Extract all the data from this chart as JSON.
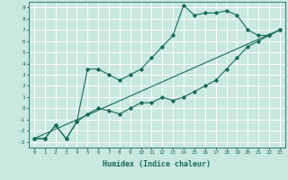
{
  "title": "",
  "xlabel": "Humidex (Indice chaleur)",
  "ylabel": "",
  "xlim": [
    -0.5,
    23.5
  ],
  "ylim": [
    -3.5,
    9.5
  ],
  "xticks": [
    0,
    1,
    2,
    3,
    4,
    5,
    6,
    7,
    8,
    9,
    10,
    11,
    12,
    13,
    14,
    15,
    16,
    17,
    18,
    19,
    20,
    21,
    22,
    23
  ],
  "yticks": [
    -3,
    -2,
    -1,
    0,
    1,
    2,
    3,
    4,
    5,
    6,
    7,
    8,
    9
  ],
  "bg_color": "#c8e8e0",
  "line_color": "#1a6b5a",
  "grid_color": "#ffffff",
  "line1_x": [
    0,
    1,
    2,
    3,
    4,
    5,
    6,
    7,
    8,
    9,
    10,
    11,
    12,
    13,
    14,
    15,
    16,
    17,
    18,
    19,
    20,
    21,
    22,
    23
  ],
  "line1_y": [
    -2.7,
    -2.7,
    -1.5,
    -2.7,
    -1.2,
    -0.5,
    0.0,
    -0.2,
    -0.5,
    0.0,
    0.5,
    0.5,
    1.0,
    0.7,
    1.0,
    1.5,
    2.0,
    2.5,
    3.5,
    4.5,
    5.5,
    6.0,
    6.5,
    7.0
  ],
  "line2_x": [
    0,
    1,
    2,
    3,
    4,
    5,
    6,
    7,
    8,
    9,
    10,
    11,
    12,
    13,
    14,
    15,
    16,
    17,
    18,
    19,
    20,
    21,
    22,
    23
  ],
  "line2_y": [
    -2.7,
    -2.7,
    -1.5,
    -2.7,
    -1.2,
    3.5,
    3.5,
    3.0,
    2.5,
    3.0,
    3.5,
    4.5,
    5.5,
    6.5,
    9.2,
    8.3,
    8.5,
    8.5,
    8.7,
    8.3,
    7.0,
    6.5,
    6.5,
    7.0
  ],
  "line3_x": [
    0,
    23
  ],
  "line3_y": [
    -2.7,
    7.0
  ]
}
